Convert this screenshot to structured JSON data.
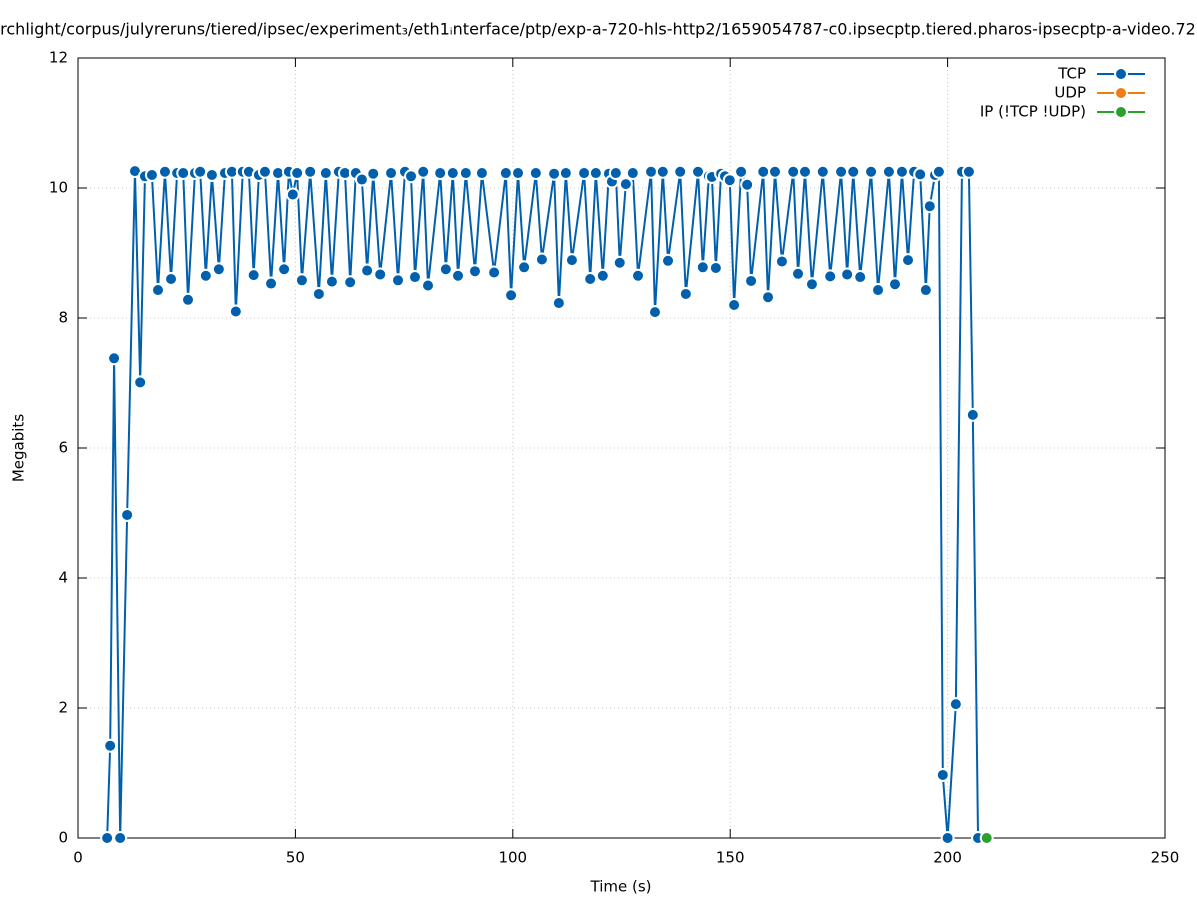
{
  "chart_data": {
    "type": "line",
    "title": "rchlight/corpus/julyreruns/tiered/ipsec/experiment₃/eth1ᵢnterface/ptp/exp-a-720-hls-http2/1659054787-c0.ipsecptp.tiered.pharos-ipsecptp-a-video.72",
    "xlabel": "Time (s)",
    "ylabel": "Megabits",
    "xlim": [
      0,
      250
    ],
    "xticks": [
      0,
      50,
      100,
      150,
      200,
      250
    ],
    "ylim": [
      0,
      12
    ],
    "yticks": [
      0,
      2,
      4,
      6,
      8,
      10,
      12
    ],
    "grid": true,
    "legend": "upper right",
    "series": [
      {
        "name": "TCP",
        "color": "#0060ad",
        "x": [
          6.7,
          7.4,
          8.3,
          9.7,
          11.3,
          13.1,
          14.3,
          15.4,
          17,
          18.4,
          20,
          21.4,
          22.8,
          24.2,
          25.3,
          26.9,
          28.1,
          29.4,
          30.8,
          32.4,
          33.8,
          35.4,
          36.3,
          37.9,
          39.3,
          40.4,
          41.6,
          43,
          44.4,
          46,
          47.4,
          48.5,
          49.4,
          50.4,
          51.5,
          53.4,
          55.4,
          57,
          58.4,
          60,
          61.4,
          62.6,
          63.9,
          65.3,
          66.5,
          67.9,
          69.5,
          72,
          73.6,
          75.2,
          76.6,
          77.5,
          79.4,
          80.5,
          83.3,
          84.6,
          86.2,
          87.4,
          89.2,
          91.3,
          92.9,
          95.7,
          98.4,
          99.6,
          101.2,
          102.6,
          105.3,
          106.7,
          109.5,
          110.6,
          112.2,
          113.6,
          116.4,
          117.8,
          119.1,
          120.7,
          122.1,
          122.8,
          123.7,
          124.6,
          126,
          127.6,
          128.8,
          131.8,
          132.7,
          134.5,
          135.7,
          138.5,
          139.8,
          142.6,
          143.7,
          145.1,
          145.8,
          146.7,
          147.9,
          148.8,
          149.9,
          150.9,
          152.5,
          153.9,
          154.8,
          157.6,
          158.7,
          160.3,
          161.9,
          164.5,
          165.6,
          167.2,
          168.8,
          171.3,
          173,
          175.5,
          176.9,
          178.3,
          179.9,
          182.4,
          184,
          186.5,
          187.9,
          189.5,
          190.9,
          192.3,
          193.7,
          195,
          195.9,
          197.1,
          198,
          198.9,
          200,
          201.9,
          203.3,
          204.9,
          205.8,
          207
        ],
        "values": [
          0,
          1.42,
          7.38,
          0,
          4.97,
          10.26,
          7.01,
          10.18,
          10.2,
          8.43,
          10.25,
          8.6,
          10.23,
          10.23,
          8.28,
          10.23,
          10.25,
          8.65,
          10.2,
          8.75,
          10.23,
          10.25,
          8.1,
          10.25,
          10.25,
          8.66,
          10.2,
          10.25,
          8.53,
          10.23,
          8.75,
          10.25,
          9.9,
          10.23,
          8.58,
          10.25,
          8.37,
          10.23,
          8.56,
          10.25,
          10.23,
          8.55,
          10.23,
          10.13,
          8.73,
          10.22,
          8.67,
          10.23,
          8.58,
          10.25,
          10.18,
          8.63,
          10.25,
          8.5,
          10.23,
          8.75,
          10.23,
          8.65,
          10.23,
          8.72,
          10.23,
          8.7,
          10.23,
          8.35,
          10.23,
          8.78,
          10.23,
          8.9,
          10.22,
          8.23,
          10.23,
          8.89,
          10.23,
          8.6,
          10.23,
          8.65,
          10.22,
          10.1,
          10.23,
          8.85,
          10.06,
          10.23,
          8.65,
          10.25,
          8.09,
          10.25,
          8.88,
          10.25,
          8.37,
          10.25,
          8.78,
          10.18,
          10.17,
          8.77,
          10.22,
          10.18,
          10.12,
          8.2,
          10.25,
          10.05,
          8.57,
          10.25,
          8.32,
          10.25,
          8.87,
          10.25,
          8.68,
          10.25,
          8.52,
          10.25,
          8.64,
          10.25,
          8.67,
          10.25,
          8.63,
          10.25,
          8.43,
          10.25,
          8.52,
          10.25,
          8.89,
          10.25,
          10.21,
          8.43,
          9.72,
          10.2,
          10.25,
          0.97,
          0,
          2.06,
          10.25,
          10.25,
          6.51,
          0
        ]
      },
      {
        "name": "UDP",
        "color": "#f07d14",
        "x": [],
        "values": []
      },
      {
        "name": "IP (!TCP  !UDP)",
        "color": "#2ca02c",
        "x": [
          209
        ],
        "values": [
          0
        ]
      }
    ]
  }
}
